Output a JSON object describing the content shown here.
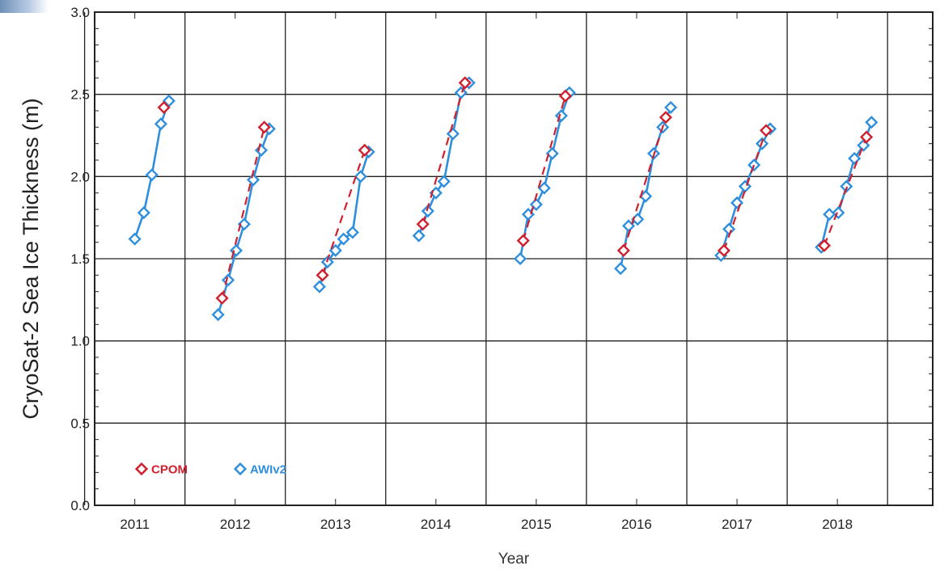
{
  "chart_data": {
    "type": "line",
    "title": "",
    "xlabel": "Year",
    "ylabel": "CryoSat-2 Sea Ice Thickness (m)",
    "xlim": [
      2010.6,
      2018.95
    ],
    "ylim": [
      0.0,
      3.0
    ],
    "x_ticks": [
      2011,
      2012,
      2013,
      2014,
      2015,
      2016,
      2017,
      2018
    ],
    "x_tick_labels": [
      "2011",
      "2012",
      "2013",
      "2014",
      "2015",
      "2016",
      "2017",
      "2018"
    ],
    "y_ticks": [
      0.0,
      0.5,
      1.0,
      1.5,
      2.0,
      2.5,
      3.0
    ],
    "y_tick_labels": [
      "0.0",
      "0.5",
      "1.0",
      "1.5",
      "2.0",
      "2.5",
      "3.0"
    ],
    "grid": true,
    "legend_placement": "bottom-left",
    "series": [
      {
        "name": "CPOM",
        "color": "#d0202e",
        "line_style": "dashed",
        "marker": "diamond",
        "segments": [
          [
            [
              2011.29,
              2.42
            ]
          ],
          [
            [
              2011.87,
              1.26
            ],
            [
              2012.29,
              2.3
            ]
          ],
          [
            [
              2012.87,
              1.4
            ],
            [
              2013.29,
              2.16
            ]
          ],
          [
            [
              2013.87,
              1.71
            ],
            [
              2014.29,
              2.57
            ]
          ],
          [
            [
              2014.87,
              1.61
            ],
            [
              2015.29,
              2.49
            ]
          ],
          [
            [
              2015.87,
              1.55
            ],
            [
              2016.29,
              2.36
            ]
          ],
          [
            [
              2016.87,
              1.55
            ],
            [
              2017.29,
              2.28
            ]
          ],
          [
            [
              2017.87,
              1.58
            ],
            [
              2018.29,
              2.24
            ]
          ]
        ]
      },
      {
        "name": "AWIv2",
        "color": "#2f8fdd",
        "line_style": "solid",
        "marker": "diamond",
        "segments": [
          [
            [
              2011.0,
              1.62
            ],
            [
              2011.09,
              1.78
            ],
            [
              2011.17,
              2.01
            ],
            [
              2011.26,
              2.32
            ],
            [
              2011.34,
              2.46
            ]
          ],
          [
            [
              2011.83,
              1.16
            ],
            [
              2011.93,
              1.37
            ],
            [
              2012.01,
              1.55
            ],
            [
              2012.09,
              1.71
            ],
            [
              2012.18,
              1.98
            ],
            [
              2012.26,
              2.16
            ],
            [
              2012.34,
              2.29
            ]
          ],
          [
            [
              2012.84,
              1.33
            ],
            [
              2012.92,
              1.48
            ],
            [
              2013.0,
              1.55
            ],
            [
              2013.08,
              1.62
            ],
            [
              2013.17,
              1.66
            ],
            [
              2013.25,
              2.0
            ],
            [
              2013.33,
              2.15
            ]
          ],
          [
            [
              2013.83,
              1.64
            ],
            [
              2013.92,
              1.79
            ],
            [
              2014.0,
              1.9
            ],
            [
              2014.08,
              1.97
            ],
            [
              2014.17,
              2.26
            ],
            [
              2014.25,
              2.51
            ],
            [
              2014.33,
              2.57
            ]
          ],
          [
            [
              2014.84,
              1.5
            ],
            [
              2014.92,
              1.77
            ],
            [
              2015.0,
              1.83
            ],
            [
              2015.08,
              1.93
            ],
            [
              2015.16,
              2.14
            ],
            [
              2015.25,
              2.37
            ],
            [
              2015.33,
              2.51
            ]
          ],
          [
            [
              2015.84,
              1.44
            ],
            [
              2015.92,
              1.7
            ],
            [
              2016.01,
              1.74
            ],
            [
              2016.09,
              1.88
            ],
            [
              2016.17,
              2.14
            ],
            [
              2016.26,
              2.3
            ],
            [
              2016.34,
              2.42
            ]
          ],
          [
            [
              2016.84,
              1.52
            ],
            [
              2016.92,
              1.68
            ],
            [
              2017.0,
              1.84
            ],
            [
              2017.08,
              1.94
            ],
            [
              2017.17,
              2.07
            ],
            [
              2017.25,
              2.2
            ],
            [
              2017.33,
              2.29
            ]
          ],
          [
            [
              2017.84,
              1.57
            ],
            [
              2017.92,
              1.77
            ],
            [
              2018.01,
              1.78
            ],
            [
              2018.09,
              1.94
            ],
            [
              2018.17,
              2.11
            ],
            [
              2018.26,
              2.19
            ],
            [
              2018.34,
              2.33
            ]
          ]
        ]
      }
    ]
  }
}
